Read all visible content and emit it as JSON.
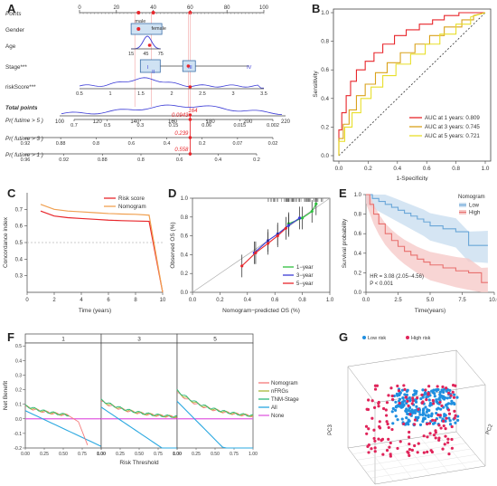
{
  "panel_labels": [
    "A",
    "B",
    "C",
    "D",
    "E",
    "F",
    "G"
  ],
  "nomogram": {
    "rows": [
      {
        "label": "Points",
        "style": "italic"
      },
      {
        "label": "Gender",
        "style": "normal"
      },
      {
        "label": "Age",
        "style": "normal"
      },
      {
        "label": "Stage***",
        "style": "normal"
      },
      {
        "label": "riskScore***",
        "style": "normal"
      },
      {
        "label": "Total points",
        "style": "bolditalic"
      },
      {
        "label": "Pr( futime > 5 )",
        "style": "italic"
      },
      {
        "label": "Pr( futime > 3 )",
        "style": "italic"
      },
      {
        "label": "Pr( futime > 1 )",
        "style": "italic"
      }
    ],
    "points_ticks": [
      "0",
      "20",
      "40",
      "60",
      "80",
      "100"
    ],
    "gender_labels": [
      "male",
      "female"
    ],
    "age_ticks": [
      "15",
      "45",
      "75"
    ],
    "stage_labels": [
      "I",
      "II",
      "III",
      "IV"
    ],
    "riskscore_ticks": [
      "0.5",
      "1",
      "1.5",
      "2",
      "2.5",
      "3",
      "3.5"
    ],
    "total_ticks": [
      "100",
      "120",
      "140",
      "160",
      "180",
      "200",
      "220"
    ],
    "total_value": "164",
    "pr5_ticks": [
      "0.7",
      "0.5",
      "0.3",
      "0.15",
      "0.06",
      "0.015",
      "0.002"
    ],
    "pr5_value": "0.0943",
    "pr3_ticks": [
      "0.92",
      "0.88",
      "0.8",
      "0.6",
      "0.4",
      "0.2",
      "0.07",
      "0.02"
    ],
    "pr3_value": "0.239",
    "pr1_ticks": [
      "0.96",
      "0.92",
      "0.88",
      "0.8",
      "0.6",
      "0.4",
      "0.2"
    ],
    "pr1_value": "0.558"
  },
  "chart_data": [
    {
      "panel": "B",
      "type": "line",
      "xlabel": "1-Specificity",
      "ylabel": "Sensitivity",
      "xlim": [
        0,
        1
      ],
      "ylim": [
        0,
        1
      ],
      "ticks": [
        "0.0",
        "0.2",
        "0.4",
        "0.6",
        "0.8",
        "1.0"
      ],
      "legend_position": "bottom-right",
      "series": [
        {
          "name": "AUC at 1 years: 0.809",
          "color": "#e8262b",
          "x": [
            0,
            0,
            0.02,
            0.02,
            0.05,
            0.05,
            0.08,
            0.08,
            0.12,
            0.12,
            0.18,
            0.18,
            0.24,
            0.24,
            0.3,
            0.3,
            0.38,
            0.38,
            0.46,
            0.46,
            0.55,
            0.55,
            0.64,
            0.64,
            0.72,
            0.72,
            0.82,
            0.82,
            1
          ],
          "y": [
            0,
            0.18,
            0.18,
            0.3,
            0.3,
            0.42,
            0.42,
            0.52,
            0.52,
            0.6,
            0.6,
            0.66,
            0.66,
            0.72,
            0.72,
            0.78,
            0.78,
            0.84,
            0.84,
            0.88,
            0.88,
            0.92,
            0.92,
            0.95,
            0.95,
            0.98,
            0.98,
            1,
            1
          ]
        },
        {
          "name": "AUC at 3 years: 0.745",
          "color": "#d9a21b",
          "x": [
            0,
            0,
            0.03,
            0.03,
            0.07,
            0.07,
            0.12,
            0.12,
            0.18,
            0.18,
            0.25,
            0.25,
            0.33,
            0.33,
            0.42,
            0.42,
            0.52,
            0.52,
            0.62,
            0.62,
            0.72,
            0.72,
            0.84,
            0.84,
            0.92,
            0.92,
            1
          ],
          "y": [
            0,
            0.12,
            0.12,
            0.22,
            0.22,
            0.32,
            0.32,
            0.42,
            0.42,
            0.5,
            0.5,
            0.58,
            0.58,
            0.65,
            0.65,
            0.72,
            0.72,
            0.78,
            0.78,
            0.84,
            0.84,
            0.9,
            0.9,
            0.95,
            0.95,
            0.98,
            1
          ]
        },
        {
          "name": "AUC at 5 years: 0.721",
          "color": "#e8df2a",
          "x": [
            0,
            0,
            0.04,
            0.04,
            0.09,
            0.09,
            0.15,
            0.15,
            0.22,
            0.22,
            0.3,
            0.3,
            0.39,
            0.39,
            0.49,
            0.49,
            0.59,
            0.59,
            0.69,
            0.69,
            0.8,
            0.8,
            0.9,
            0.9,
            1
          ],
          "y": [
            0,
            0.1,
            0.1,
            0.2,
            0.2,
            0.3,
            0.3,
            0.4,
            0.4,
            0.48,
            0.48,
            0.56,
            0.56,
            0.64,
            0.64,
            0.71,
            0.71,
            0.78,
            0.78,
            0.85,
            0.85,
            0.92,
            0.92,
            0.97,
            1
          ]
        }
      ]
    },
    {
      "panel": "C",
      "type": "line",
      "xlabel": "Time (years)",
      "ylabel": "Concordance index",
      "xlim": [
        0,
        10
      ],
      "ylim": [
        0.2,
        0.8
      ],
      "xticks": [
        "0",
        "2",
        "4",
        "6",
        "8",
        "10"
      ],
      "yticks": [
        "0.3",
        "0.4",
        "0.5",
        "0.6",
        "0.7"
      ],
      "reference_line": 0.5,
      "legend_position": "top-right",
      "series": [
        {
          "name": "Risk score",
          "color": "#e8262b",
          "x": [
            1,
            2,
            3,
            4,
            5,
            6,
            7,
            8,
            9,
            10
          ],
          "y": [
            0.69,
            0.66,
            0.65,
            0.645,
            0.64,
            0.635,
            0.632,
            0.63,
            0.628,
            0.2
          ]
        },
        {
          "name": "Nomogram",
          "color": "#f0a050",
          "x": [
            1,
            2,
            3,
            4,
            5,
            6,
            7,
            8,
            9,
            10
          ],
          "y": [
            0.73,
            0.7,
            0.69,
            0.685,
            0.68,
            0.675,
            0.672,
            0.67,
            0.665,
            0.2
          ]
        }
      ]
    },
    {
      "panel": "D",
      "type": "line",
      "xlabel": "Nomogram−predicted OS (%)",
      "ylabel": "Observed OS (%)",
      "xlim": [
        0,
        1
      ],
      "ylim": [
        0,
        1
      ],
      "ticks": [
        "0.0",
        "0.2",
        "0.4",
        "0.6",
        "0.8",
        "1.0"
      ],
      "legend_position": "bottom-right",
      "series": [
        {
          "name": "1−year",
          "color": "#2fbf3f",
          "x": [
            0.7,
            0.8,
            0.87,
            0.9
          ],
          "y": [
            0.73,
            0.79,
            0.86,
            0.94
          ]
        },
        {
          "name": "3−year",
          "color": "#3b3bd6",
          "x": [
            0.45,
            0.55,
            0.62,
            0.7,
            0.78
          ],
          "y": [
            0.42,
            0.55,
            0.62,
            0.71,
            0.79
          ]
        },
        {
          "name": "5−year",
          "color": "#e8262b",
          "x": [
            0.36,
            0.46,
            0.55,
            0.62,
            0.68
          ],
          "y": [
            0.28,
            0.42,
            0.52,
            0.6,
            0.68
          ]
        }
      ]
    },
    {
      "panel": "E",
      "type": "line",
      "xlabel": "Time(years)",
      "ylabel": "Survival probability",
      "xlim": [
        0,
        10
      ],
      "ylim": [
        0,
        1
      ],
      "xticks": [
        "0.0",
        "2.5",
        "5.0",
        "7.5",
        "10.0"
      ],
      "yticks": [
        "0.0",
        "0.2",
        "0.4",
        "0.6",
        "0.8",
        "1.0"
      ],
      "legend_title": "Nomogram",
      "legend_position": "top-right",
      "annotations": [
        "HR = 3.08 (2.05−4.56)",
        "P < 0.001"
      ],
      "series": [
        {
          "name": "Low",
          "color": "#6aa6d8",
          "x": [
            0,
            0.5,
            1,
            1.5,
            2,
            2.5,
            3,
            3.5,
            4,
            4.5,
            5,
            6,
            7,
            8,
            9,
            9.5
          ],
          "y": [
            1,
            0.96,
            0.93,
            0.9,
            0.87,
            0.84,
            0.81,
            0.78,
            0.75,
            0.72,
            0.68,
            0.65,
            0.62,
            0.48,
            0.48,
            0.48
          ]
        },
        {
          "name": "High",
          "color": "#e8706e",
          "x": [
            0,
            0.3,
            0.6,
            1,
            1.5,
            2,
            2.5,
            3,
            3.5,
            4,
            4.5,
            5,
            6,
            7,
            8,
            9,
            9.5
          ],
          "y": [
            1,
            0.9,
            0.8,
            0.7,
            0.6,
            0.53,
            0.47,
            0.42,
            0.38,
            0.34,
            0.31,
            0.28,
            0.25,
            0.22,
            0.2,
            0.1,
            0.1
          ]
        }
      ]
    },
    {
      "panel": "F",
      "type": "line",
      "xlabel": "Risk Threshold",
      "ylabel": "Net Benefit",
      "facets": [
        "1",
        "3",
        "5"
      ],
      "xticks": [
        "0.00",
        "0.25",
        "0.50",
        "0.75",
        "1.00"
      ],
      "yticks": [
        "-0.2",
        "-0.1",
        "0.0",
        "0.1",
        "0.2",
        "0.3",
        "0.4",
        "0.5"
      ],
      "legend_position": "right",
      "series": [
        {
          "name": "Nomogram",
          "color": "#f47a7a"
        },
        {
          "name": "nFRGs",
          "color": "#a8b83a"
        },
        {
          "name": "TNM-Stage",
          "color": "#2eb87c"
        },
        {
          "name": "All",
          "color": "#2aa8e0"
        },
        {
          "name": "None",
          "color": "#e05ce0"
        }
      ]
    },
    {
      "panel": "G",
      "type": "scatter",
      "xlabel": "PC1",
      "ylabel": "PC3",
      "zlabel": "PC2",
      "legend_position": "top",
      "series": [
        {
          "name": "Low risk",
          "color": "#1f8fe0"
        },
        {
          "name": "High risk",
          "color": "#e0245a"
        }
      ]
    }
  ]
}
